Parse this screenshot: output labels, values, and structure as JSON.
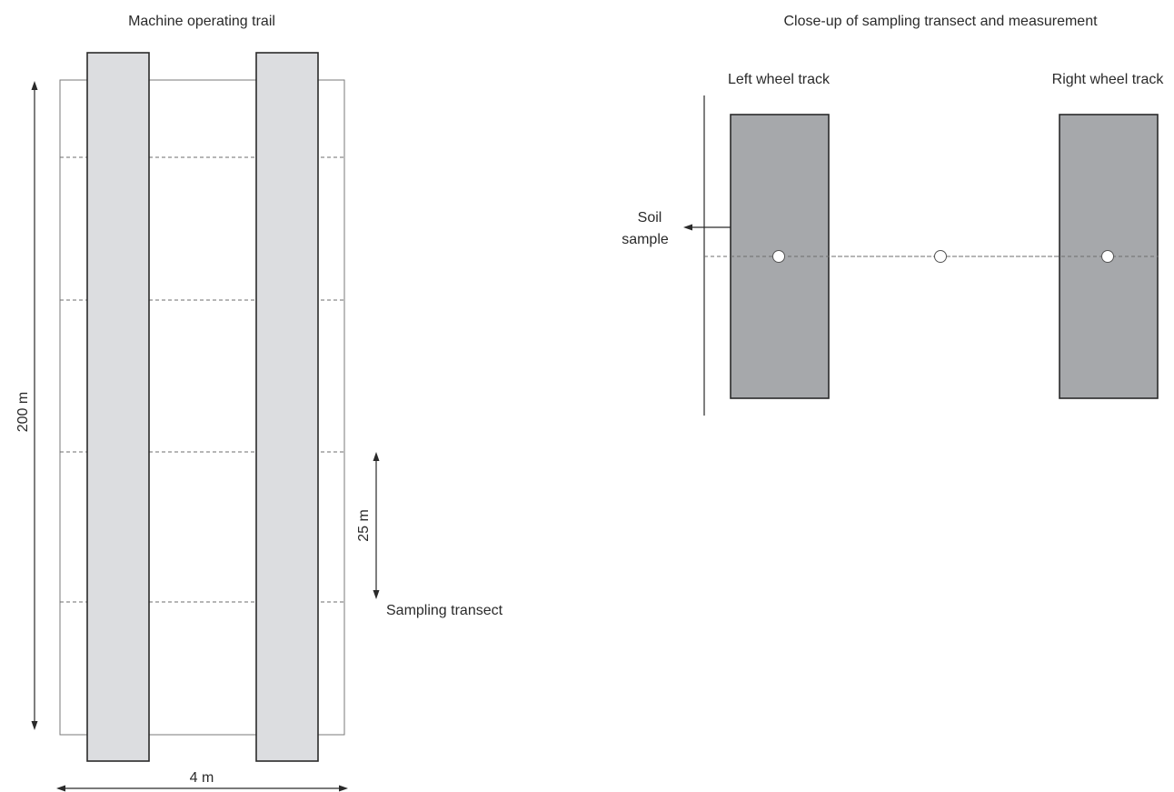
{
  "left_panel": {
    "title": "Machine operating trail",
    "length_label": "200 m",
    "width_label": "4 m",
    "spacing_label": "25 m",
    "transect_label": "Sampling transect"
  },
  "right_panel": {
    "title": "Close-up of sampling transect and measurement",
    "left_track_label": "Left wheel track",
    "right_track_label": "Right wheel track",
    "soil_sample_label_line1": "Soil",
    "soil_sample_label_line2": "sample"
  },
  "colors": {
    "track_fill_light": "#dcdde0",
    "track_fill_dark": "#a6a8ab",
    "outline": "#2a2a2a"
  }
}
